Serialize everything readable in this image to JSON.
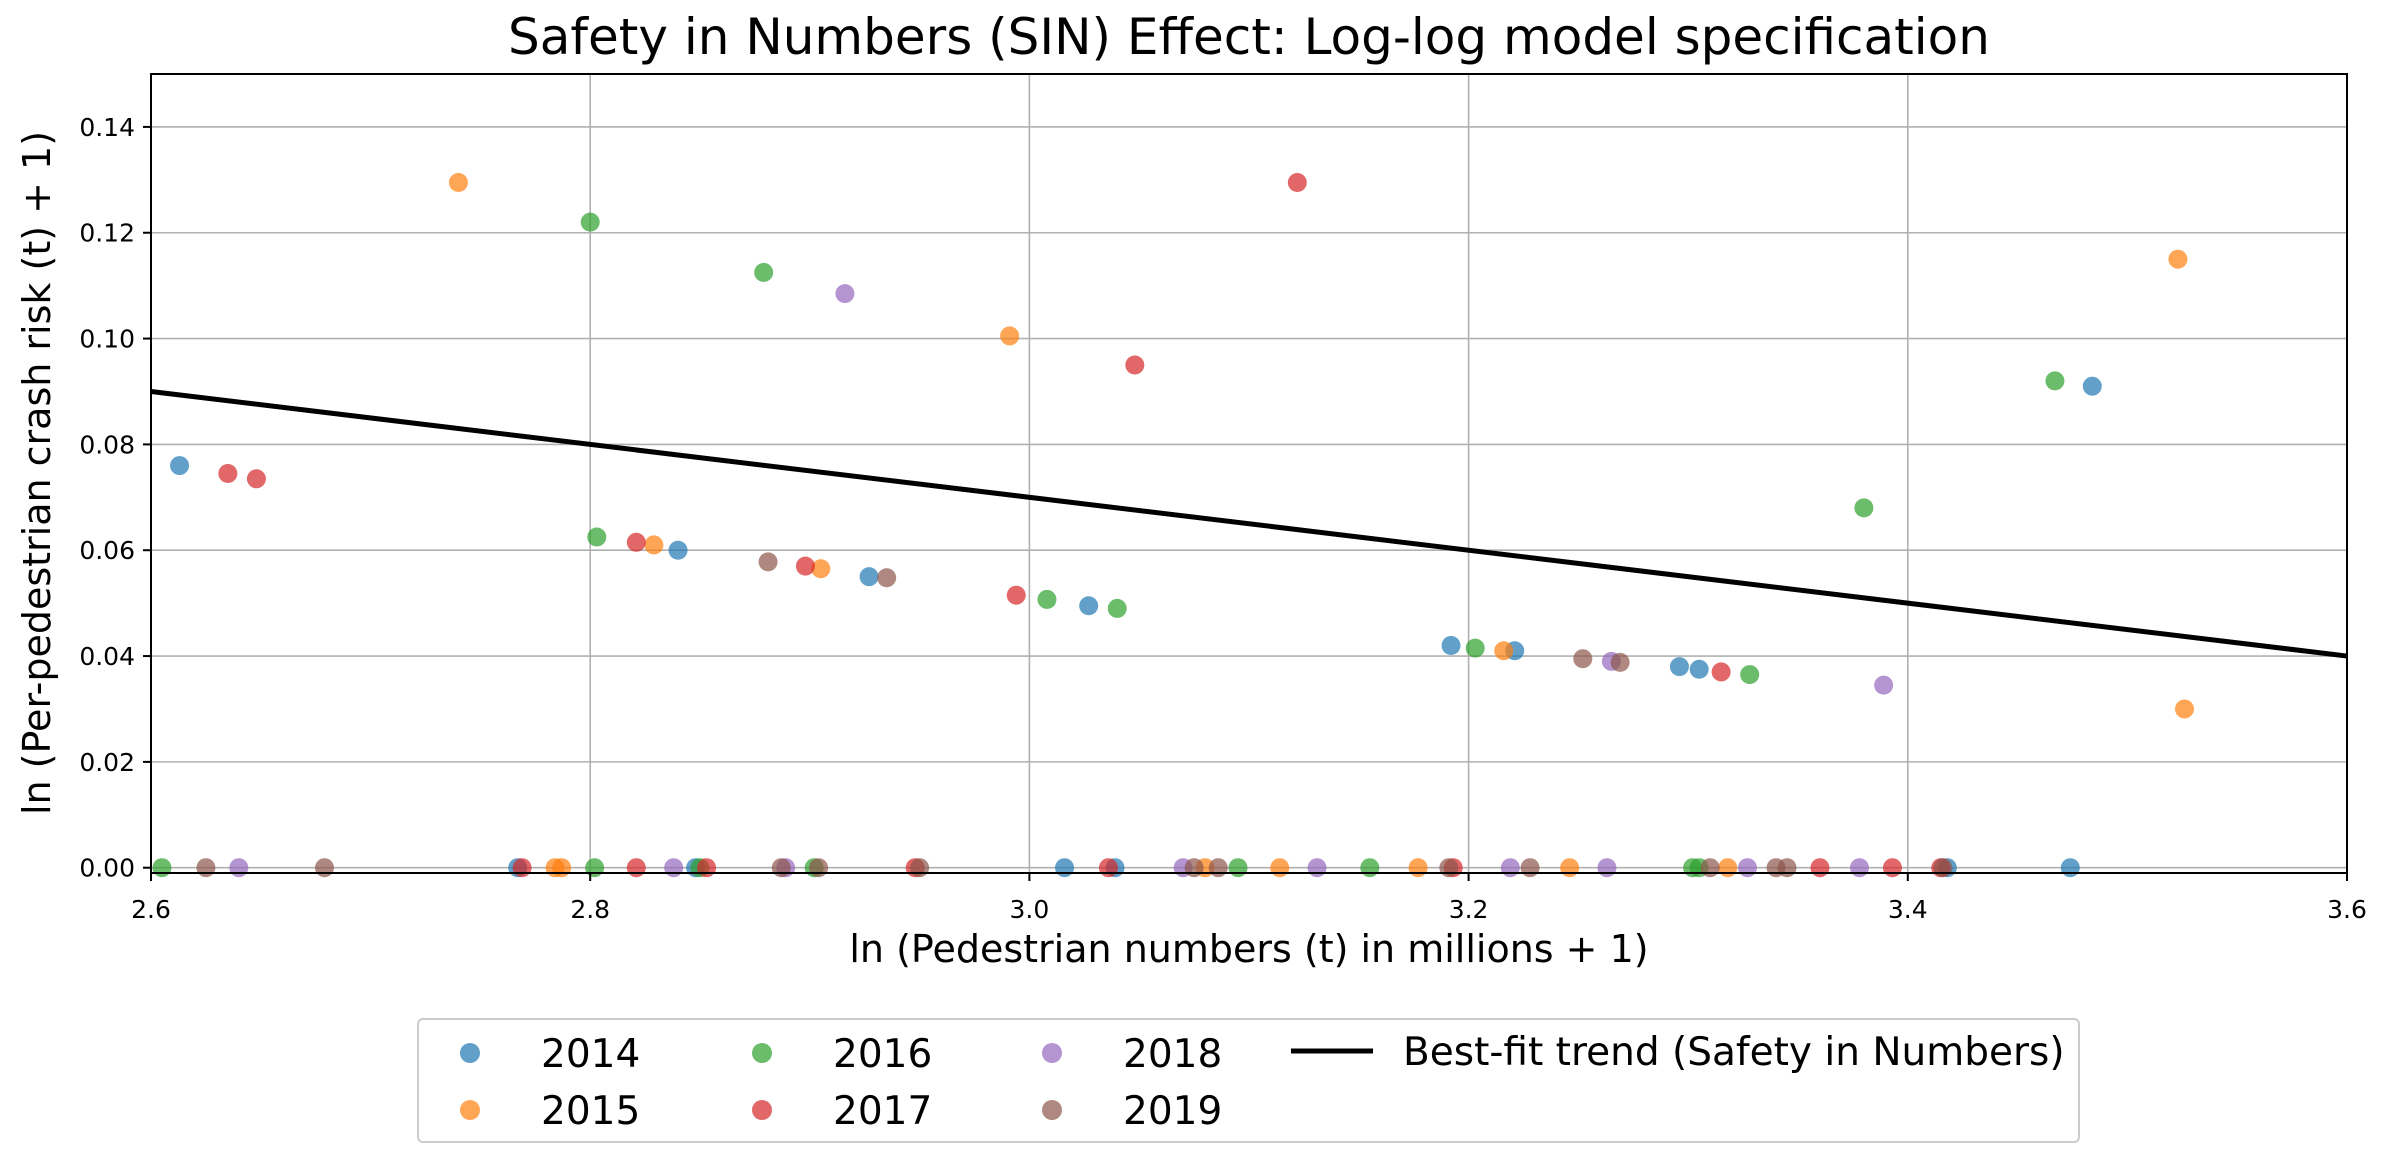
{
  "chart_data": {
    "type": "scatter",
    "title": "Safety in Numbers (SIN) Effect: Log-log model specification",
    "xlabel": "ln (Pedestrian numbers (t) in millions + 1)",
    "ylabel": "ln (Per-pedestrian crash risk (t) + 1)",
    "xlim": [
      2.6,
      3.6
    ],
    "ylim": [
      -0.001,
      0.15
    ],
    "xticks": [
      "2.6",
      "2.8",
      "3.0",
      "3.2",
      "3.4",
      "3.6"
    ],
    "yticks": [
      "0.00",
      "0.02",
      "0.04",
      "0.06",
      "0.08",
      "0.10",
      "0.12",
      "0.14"
    ],
    "grid": true,
    "legend_position": "bottom-center",
    "series": [
      {
        "name": "2014",
        "color": "#1f77b4",
        "points": [
          [
            2.613,
            0.076
          ],
          [
            2.84,
            0.06
          ],
          [
            2.927,
            0.055
          ],
          [
            3.027,
            0.0495
          ],
          [
            3.192,
            0.042
          ],
          [
            3.221,
            0.041
          ],
          [
            3.296,
            0.038
          ],
          [
            3.305,
            0.0375
          ],
          [
            3.484,
            0.091
          ],
          [
            2.767,
            0.0
          ],
          [
            2.848,
            0.0
          ],
          [
            3.016,
            0.0
          ],
          [
            3.039,
            0.0
          ],
          [
            3.474,
            0.0
          ],
          [
            3.418,
            0.0
          ]
        ]
      },
      {
        "name": "2015",
        "color": "#ff7f0e",
        "points": [
          [
            2.74,
            0.1295
          ],
          [
            2.829,
            0.061
          ],
          [
            2.905,
            0.0565
          ],
          [
            2.991,
            0.1005
          ],
          [
            3.216,
            0.041
          ],
          [
            3.523,
            0.115
          ],
          [
            3.526,
            0.03
          ],
          [
            2.784,
            0.0
          ],
          [
            2.787,
            0.0
          ],
          [
            3.08,
            0.0
          ],
          [
            3.114,
            0.0
          ],
          [
            3.177,
            0.0
          ],
          [
            3.246,
            0.0
          ],
          [
            3.318,
            0.0
          ]
        ]
      },
      {
        "name": "2016",
        "color": "#2ca02c",
        "points": [
          [
            2.8,
            0.122
          ],
          [
            2.803,
            0.0625
          ],
          [
            2.879,
            0.1125
          ],
          [
            3.008,
            0.0507
          ],
          [
            3.04,
            0.049
          ],
          [
            3.203,
            0.0415
          ],
          [
            3.328,
            0.0365
          ],
          [
            3.38,
            0.068
          ],
          [
            3.467,
            0.092
          ],
          [
            2.605,
            0.0
          ],
          [
            2.802,
            0.0
          ],
          [
            2.85,
            0.0
          ],
          [
            2.902,
            0.0
          ],
          [
            3.095,
            0.0
          ],
          [
            3.155,
            0.0
          ],
          [
            3.302,
            0.0
          ],
          [
            3.305,
            0.0
          ]
        ]
      },
      {
        "name": "2017",
        "color": "#d62728",
        "points": [
          [
            2.635,
            0.0745
          ],
          [
            2.648,
            0.0735
          ],
          [
            2.821,
            0.0615
          ],
          [
            2.898,
            0.057
          ],
          [
            2.994,
            0.0515
          ],
          [
            3.048,
            0.095
          ],
          [
            3.122,
            0.1295
          ],
          [
            3.315,
            0.037
          ],
          [
            2.769,
            0.0
          ],
          [
            2.821,
            0.0
          ],
          [
            2.853,
            0.0
          ],
          [
            2.948,
            0.0
          ],
          [
            3.036,
            0.0
          ],
          [
            3.193,
            0.0
          ],
          [
            3.36,
            0.0
          ],
          [
            3.393,
            0.0
          ],
          [
            3.415,
            0.0
          ]
        ]
      },
      {
        "name": "2018",
        "color": "#9467bd",
        "points": [
          [
            2.916,
            0.1085
          ],
          [
            3.265,
            0.039
          ],
          [
            3.389,
            0.0345
          ],
          [
            2.64,
            0.0
          ],
          [
            2.838,
            0.0
          ],
          [
            2.889,
            0.0
          ],
          [
            3.07,
            0.0
          ],
          [
            3.131,
            0.0
          ],
          [
            3.219,
            0.0
          ],
          [
            3.263,
            0.0
          ],
          [
            3.327,
            0.0
          ],
          [
            3.378,
            0.0
          ]
        ]
      },
      {
        "name": "2019",
        "color": "#8c564b",
        "points": [
          [
            2.881,
            0.0578
          ],
          [
            2.935,
            0.0548
          ],
          [
            3.252,
            0.0395
          ],
          [
            3.269,
            0.0388
          ],
          [
            2.625,
            0.0
          ],
          [
            2.679,
            0.0
          ],
          [
            2.887,
            0.0
          ],
          [
            2.904,
            0.0
          ],
          [
            2.95,
            0.0
          ],
          [
            3.075,
            0.0
          ],
          [
            3.086,
            0.0
          ],
          [
            3.191,
            0.0
          ],
          [
            3.228,
            0.0
          ],
          [
            3.31,
            0.0
          ],
          [
            3.34,
            0.0
          ],
          [
            3.345,
            0.0
          ],
          [
            3.416,
            0.0
          ]
        ]
      }
    ],
    "trend": {
      "name": "Best-fit trend (Safety in Numbers)",
      "color": "#000000",
      "points": [
        [
          2.6,
          0.09
        ],
        [
          3.6,
          0.04
        ]
      ]
    }
  }
}
